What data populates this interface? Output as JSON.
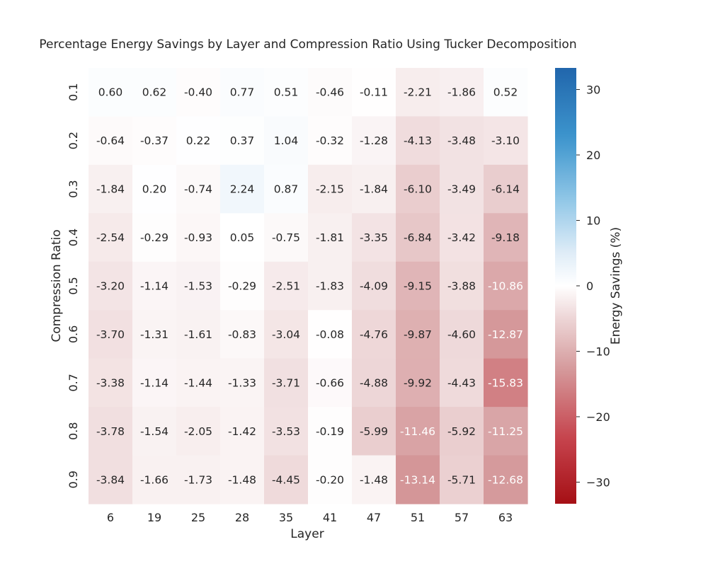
{
  "chart_data": {
    "type": "heatmap",
    "title": "Percentage Energy Savings by Layer and Compression Ratio Using Tucker Decomposition",
    "xlabel": "Layer",
    "ylabel": "Compression Ratio",
    "x_categories": [
      "6",
      "19",
      "25",
      "28",
      "35",
      "41",
      "47",
      "51",
      "57",
      "63"
    ],
    "y_categories": [
      "0.1",
      "0.2",
      "0.3",
      "0.4",
      "0.5",
      "0.6",
      "0.7",
      "0.8",
      "0.9"
    ],
    "values": [
      [
        0.6,
        0.62,
        -0.4,
        0.77,
        0.51,
        -0.46,
        -0.11,
        -2.21,
        -1.86,
        0.52
      ],
      [
        -0.64,
        -0.37,
        0.22,
        0.37,
        1.04,
        -0.32,
        -1.28,
        -4.13,
        -3.48,
        -3.1
      ],
      [
        -1.84,
        0.2,
        -0.74,
        2.24,
        0.87,
        -2.15,
        -1.84,
        -6.1,
        -3.49,
        -6.14
      ],
      [
        -2.54,
        -0.29,
        -0.93,
        0.05,
        -0.75,
        -1.81,
        -3.35,
        -6.84,
        -3.42,
        -9.18
      ],
      [
        -3.2,
        -1.14,
        -1.53,
        -0.29,
        -2.51,
        -1.83,
        -4.09,
        -9.15,
        -3.88,
        -10.86
      ],
      [
        -3.7,
        -1.31,
        -1.61,
        -0.83,
        -3.04,
        -0.08,
        -4.76,
        -9.87,
        -4.6,
        -12.87
      ],
      [
        -3.38,
        -1.14,
        -1.44,
        -1.33,
        -3.71,
        -0.66,
        -4.88,
        -9.92,
        -4.43,
        -15.83
      ],
      [
        -3.78,
        -1.54,
        -2.05,
        -1.42,
        -3.53,
        -0.19,
        -5.99,
        -11.46,
        -5.92,
        -11.25
      ],
      [
        -3.84,
        -1.66,
        -1.73,
        -1.48,
        -4.45,
        -0.2,
        -1.48,
        -13.14,
        -5.71,
        -12.68
      ]
    ],
    "value_format_decimals": 2,
    "colorbar": {
      "label": "Energy Savings (%)",
      "vmin": -33.3,
      "vmax": 33.3,
      "ticks": [
        "30",
        "20",
        "10",
        "0",
        "−10",
        "−20",
        "−30"
      ],
      "tick_values": [
        30,
        20,
        10,
        0,
        -10,
        -20,
        -30
      ]
    },
    "colors": {
      "negative_max": "#a50f15",
      "neutral": "#ffffff",
      "positive_max": "#2166ac"
    },
    "grid": false
  }
}
